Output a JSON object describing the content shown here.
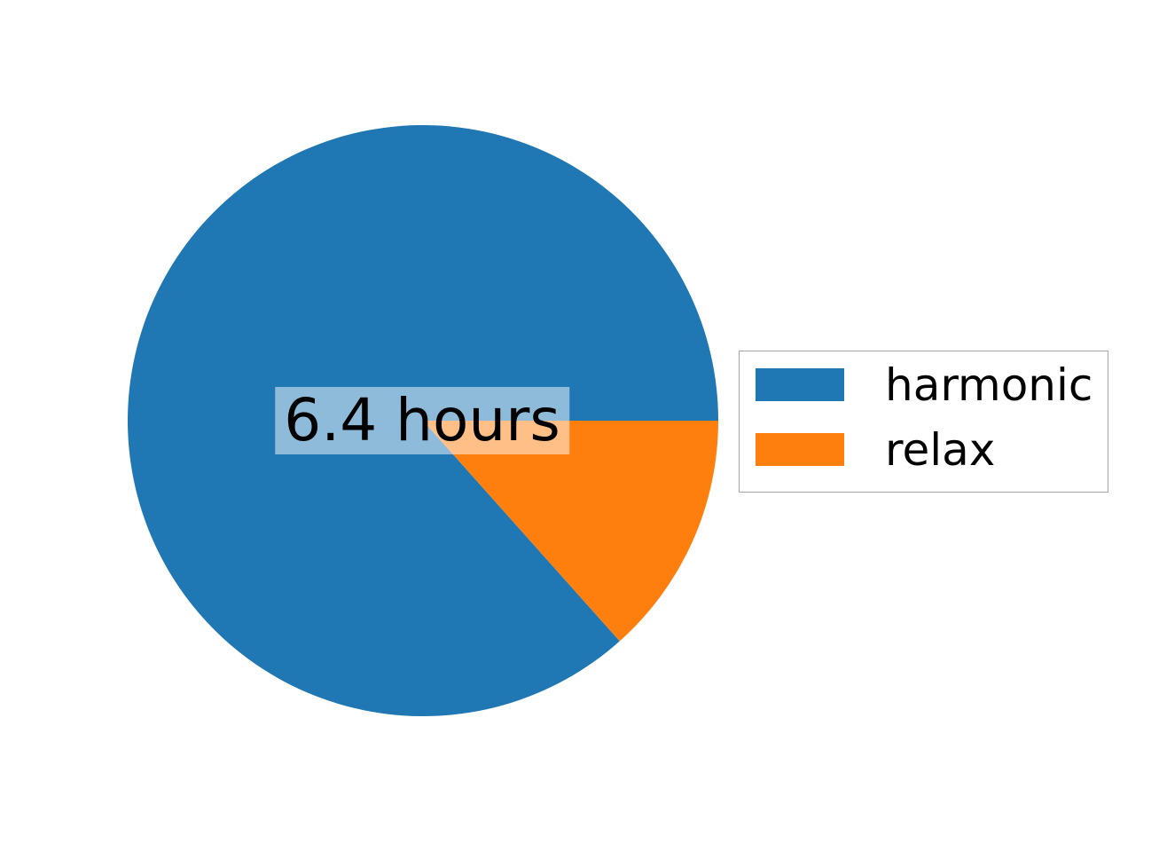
{
  "chart_data": {
    "type": "pie",
    "labels": [
      "harmonic",
      "relax"
    ],
    "values_percent": [
      86.6,
      13.4
    ],
    "colors": [
      "#1f77b4",
      "#ff7f0e"
    ],
    "start_angle": 0,
    "direction": "counterclockwise",
    "center_label": "6.4 hours",
    "center_label_bg": "rgba(255,255,255,0.5)",
    "legend": {
      "position": "center right",
      "entries": [
        {
          "label": "harmonic",
          "color": "#1f77b4"
        },
        {
          "label": "relax",
          "color": "#ff7f0e"
        }
      ]
    },
    "title": "",
    "background": "#ffffff"
  }
}
